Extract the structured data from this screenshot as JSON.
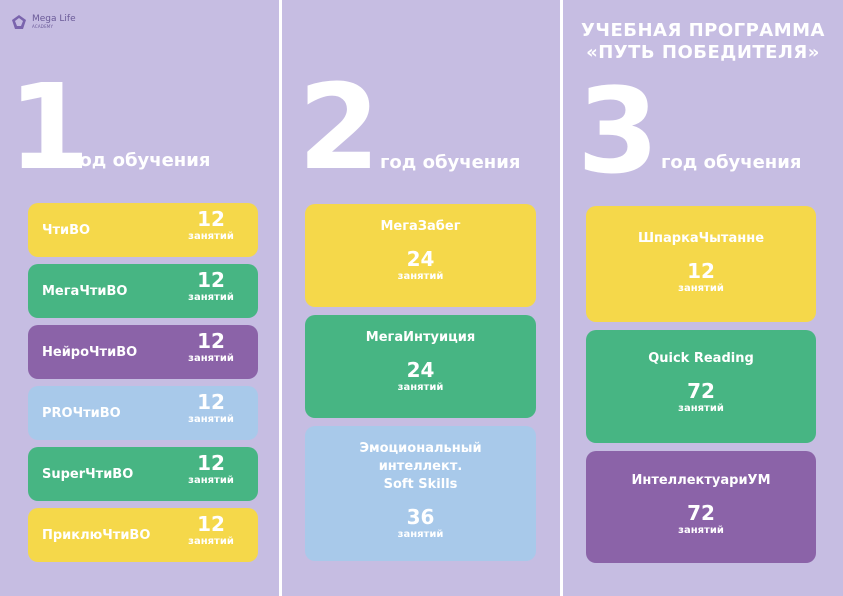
{
  "logo": {
    "name": "Mega Life",
    "tagline": "ACADEMY"
  },
  "program": {
    "title_line1": "УЧЕБНАЯ ПРОГРАММА",
    "title_line2": "«ПУТЬ ПОБЕДИТЕЛЯ»"
  },
  "years": [
    {
      "number": "1",
      "label": "год обучения",
      "courses": [
        {
          "name": "ЧтиВО",
          "count": "12",
          "unit": "занятий"
        },
        {
          "name": "МегаЧтиВО",
          "count": "12",
          "unit": "занятий"
        },
        {
          "name": "НейроЧтиВО",
          "count": "12",
          "unit": "занятий"
        },
        {
          "name": "PROЧтиВО",
          "count": "12",
          "unit": "занятий"
        },
        {
          "name": "SuperЧтиВО",
          "count": "12",
          "unit": "занятий"
        },
        {
          "name": "ПриклюЧтиВО",
          "count": "12",
          "unit": "занятий"
        }
      ]
    },
    {
      "number": "2",
      "label": "год обучения",
      "courses": [
        {
          "name": "МегаЗабег",
          "count": "24",
          "unit": "занятий"
        },
        {
          "name": "МегаИнтуиция",
          "count": "24",
          "unit": "занятий"
        },
        {
          "name_lines": [
            "Эмоциональный",
            "интеллект.",
            "Soft Skills"
          ],
          "count": "36",
          "unit": "занятий"
        }
      ]
    },
    {
      "number": "3",
      "label": "год обучения",
      "courses": [
        {
          "name": "ШпаркаЧытанне",
          "count": "12",
          "unit": "занятий"
        },
        {
          "name": "Quick Reading",
          "count": "72",
          "unit": "занятий"
        },
        {
          "name": "ИнтеллектуариУМ",
          "count": "72",
          "unit": "занятий"
        }
      ]
    }
  ],
  "colors": {
    "panel": "#c6bde2",
    "yellow": "#f5d84a",
    "green": "#47b583",
    "purple": "#8b63a8",
    "blue": "#a8c9ea",
    "text": "#ffffff"
  }
}
